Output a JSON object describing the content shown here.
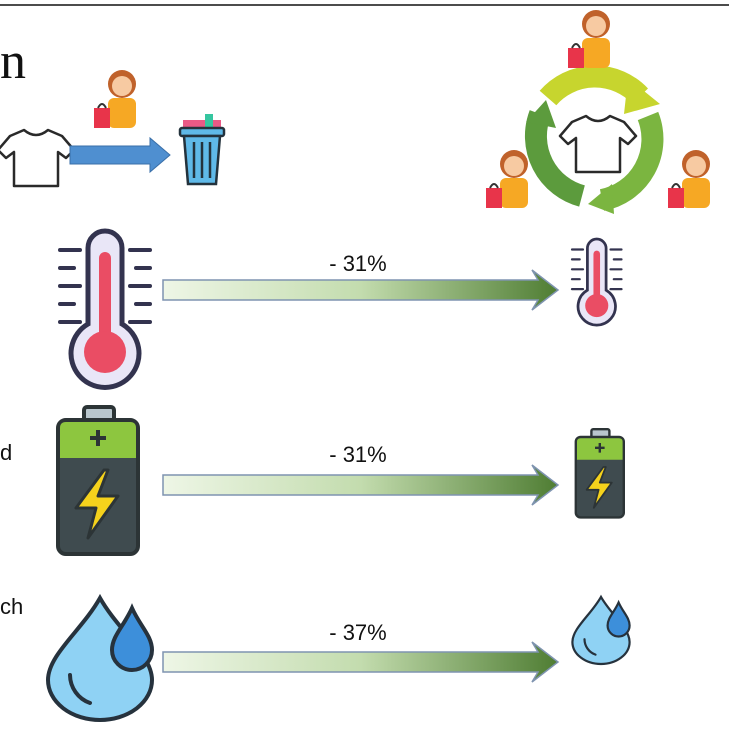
{
  "header": {
    "title": "n"
  },
  "rows": [
    {
      "change": "- 31%"
    },
    {
      "label": "d",
      "change": "- 31%"
    },
    {
      "label": "ch",
      "change": "- 37%"
    }
  ]
}
